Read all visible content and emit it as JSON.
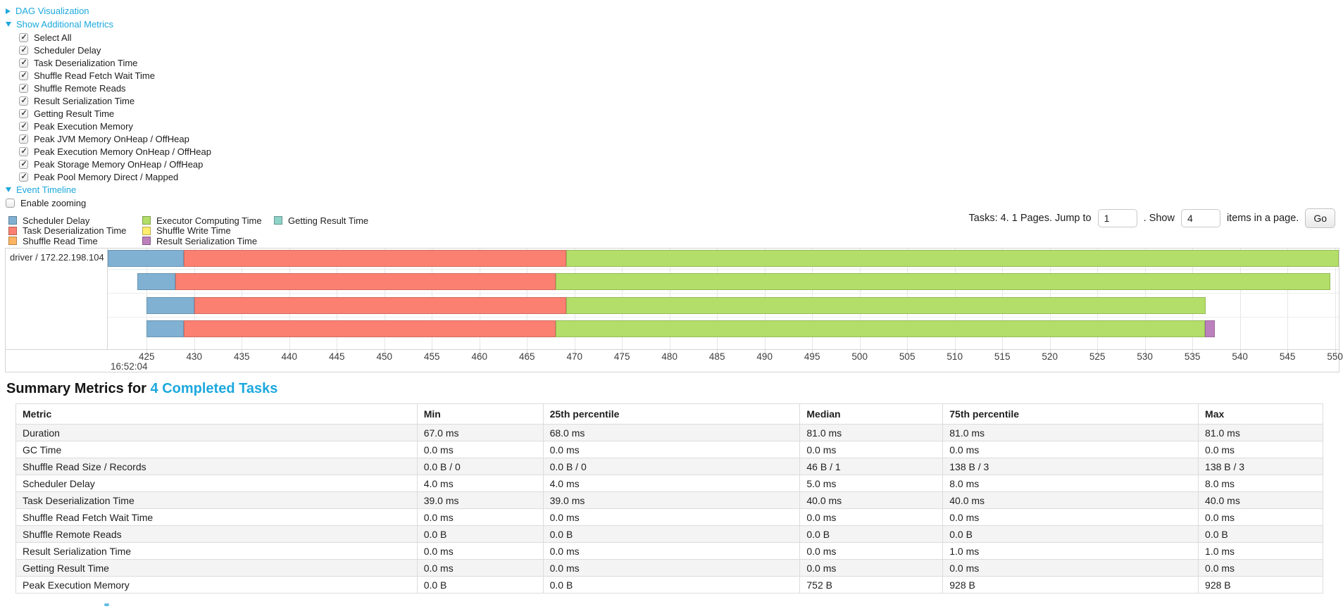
{
  "colors": {
    "link_blue": "#1ca8dd",
    "chart_border": "#d4d4d4",
    "table_stripe": "#f4f4f4",
    "scheduler_delay": "#80B1D3",
    "task_deserialization": "#FB8072",
    "shuffle_read": "#FDB462",
    "executor_computing": "#B3DE69",
    "shuffle_write": "#FFED6F",
    "result_serialization": "#BC80BD",
    "getting_result": "#8DD3C7"
  },
  "toggles": [
    {
      "label": "DAG Visualization",
      "state": "collapsed"
    },
    {
      "label": "Show Additional Metrics",
      "state": "expanded"
    },
    {
      "label": "Event Timeline",
      "state": "expanded"
    }
  ],
  "metrics": {
    "items": [
      {
        "label": "Select All",
        "checked": true
      },
      {
        "label": "Scheduler Delay",
        "checked": true
      },
      {
        "label": "Task Deserialization Time",
        "checked": true
      },
      {
        "label": "Shuffle Read Fetch Wait Time",
        "checked": true
      },
      {
        "label": "Shuffle Remote Reads",
        "checked": true
      },
      {
        "label": "Result Serialization Time",
        "checked": true
      },
      {
        "label": "Getting Result Time",
        "checked": true
      },
      {
        "label": "Peak Execution Memory",
        "checked": true
      },
      {
        "label": "Peak JVM Memory OnHeap / OffHeap",
        "checked": true
      },
      {
        "label": "Peak Execution Memory OnHeap / OffHeap",
        "checked": true
      },
      {
        "label": "Peak Storage Memory OnHeap / OffHeap",
        "checked": true
      },
      {
        "label": "Peak Pool Memory Direct / Mapped",
        "checked": true
      }
    ]
  },
  "enable_zooming": {
    "label": "Enable zooming",
    "checked": false
  },
  "legend": {
    "items": [
      {
        "label": "Scheduler Delay",
        "color": "#80B1D3"
      },
      {
        "label": "Task Deserialization Time",
        "color": "#FB8072"
      },
      {
        "label": "Shuffle Read Time",
        "color": "#FDB462"
      },
      {
        "label": "Executor Computing Time",
        "color": "#B3DE69"
      },
      {
        "label": "Shuffle Write Time",
        "color": "#FFED6F"
      },
      {
        "label": "Result Serialization Time",
        "color": "#BC80BD"
      },
      {
        "label": "Getting Result Time",
        "color": "#8DD3C7"
      }
    ]
  },
  "pagination": {
    "prefix": "Tasks: 4. 1 Pages. Jump to",
    "jump_value": "1",
    "mid": ". Show",
    "show_value": "4",
    "suffix": "items in a page.",
    "go_label": "Go"
  },
  "chart_data": {
    "type": "timeline",
    "group_label": "driver / 172.22.198.104",
    "x_start": 420.9,
    "x_end": 550.4,
    "x_unit": "ms",
    "ticks": [
      425,
      430,
      435,
      440,
      445,
      450,
      455,
      460,
      465,
      470,
      475,
      480,
      485,
      490,
      495,
      500,
      505,
      510,
      515,
      520,
      525,
      530,
      535,
      540,
      545,
      550
    ],
    "major_time_label": "16:52:04",
    "tasks": [
      {
        "segments": [
          {
            "name": "scheduler-delay",
            "color": "#80B1D3",
            "start": 420.9,
            "end": 428.9
          },
          {
            "name": "task-deserialization",
            "color": "#FB8072",
            "start": 428.9,
            "end": 469.1
          },
          {
            "name": "executor-computing",
            "color": "#B3DE69",
            "start": 469.1,
            "end": 550.4
          }
        ]
      },
      {
        "segments": [
          {
            "name": "scheduler-delay",
            "color": "#80B1D3",
            "start": 424.0,
            "end": 428.0
          },
          {
            "name": "task-deserialization",
            "color": "#FB8072",
            "start": 428.0,
            "end": 468.0
          },
          {
            "name": "executor-computing",
            "color": "#B3DE69",
            "start": 468.0,
            "end": 549.5
          }
        ]
      },
      {
        "segments": [
          {
            "name": "scheduler-delay",
            "color": "#80B1D3",
            "start": 425.0,
            "end": 430.0
          },
          {
            "name": "task-deserialization",
            "color": "#FB8072",
            "start": 430.0,
            "end": 469.1
          },
          {
            "name": "executor-computing",
            "color": "#B3DE69",
            "start": 469.1,
            "end": 536.4
          }
        ]
      },
      {
        "segments": [
          {
            "name": "scheduler-delay",
            "color": "#80B1D3",
            "start": 425.0,
            "end": 428.9
          },
          {
            "name": "task-deserialization",
            "color": "#FB8072",
            "start": 428.9,
            "end": 468.0
          },
          {
            "name": "executor-computing",
            "color": "#B3DE69",
            "start": 468.0,
            "end": 536.3
          },
          {
            "name": "result-serialization",
            "color": "#BC80BD",
            "start": 536.3,
            "end": 537.4
          }
        ]
      }
    ]
  },
  "summary": {
    "title_prefix": "Summary Metrics for ",
    "title_link": "4 Completed Tasks",
    "columns": [
      "Metric",
      "Min",
      "25th percentile",
      "Median",
      "75th percentile",
      "Max"
    ],
    "rows": [
      {
        "metric": "Duration",
        "values": [
          "67.0 ms",
          "68.0 ms",
          "81.0 ms",
          "81.0 ms",
          "81.0 ms"
        ]
      },
      {
        "metric": "GC Time",
        "values": [
          "0.0 ms",
          "0.0 ms",
          "0.0 ms",
          "0.0 ms",
          "0.0 ms"
        ]
      },
      {
        "metric": "Shuffle Read Size / Records",
        "values": [
          "0.0 B / 0",
          "0.0 B / 0",
          "46 B / 1",
          "138 B / 3",
          "138 B / 3"
        ]
      },
      {
        "metric": "Scheduler Delay",
        "values": [
          "4.0 ms",
          "4.0 ms",
          "5.0 ms",
          "8.0 ms",
          "8.0 ms"
        ]
      },
      {
        "metric": "Task Deserialization Time",
        "values": [
          "39.0 ms",
          "39.0 ms",
          "40.0 ms",
          "40.0 ms",
          "40.0 ms"
        ]
      },
      {
        "metric": "Shuffle Read Fetch Wait Time",
        "values": [
          "0.0 ms",
          "0.0 ms",
          "0.0 ms",
          "0.0 ms",
          "0.0 ms"
        ]
      },
      {
        "metric": "Shuffle Remote Reads",
        "values": [
          "0.0 B",
          "0.0 B",
          "0.0 B",
          "0.0 B",
          "0.0 B"
        ]
      },
      {
        "metric": "Result Serialization Time",
        "values": [
          "0.0 ms",
          "0.0 ms",
          "0.0 ms",
          "1.0 ms",
          "1.0 ms"
        ]
      },
      {
        "metric": "Getting Result Time",
        "values": [
          "0.0 ms",
          "0.0 ms",
          "0.0 ms",
          "0.0 ms",
          "0.0 ms"
        ]
      },
      {
        "metric": "Peak Execution Memory",
        "values": [
          "0.0 B",
          "0.0 B",
          "752 B",
          "928 B",
          "928 B"
        ]
      }
    ]
  }
}
